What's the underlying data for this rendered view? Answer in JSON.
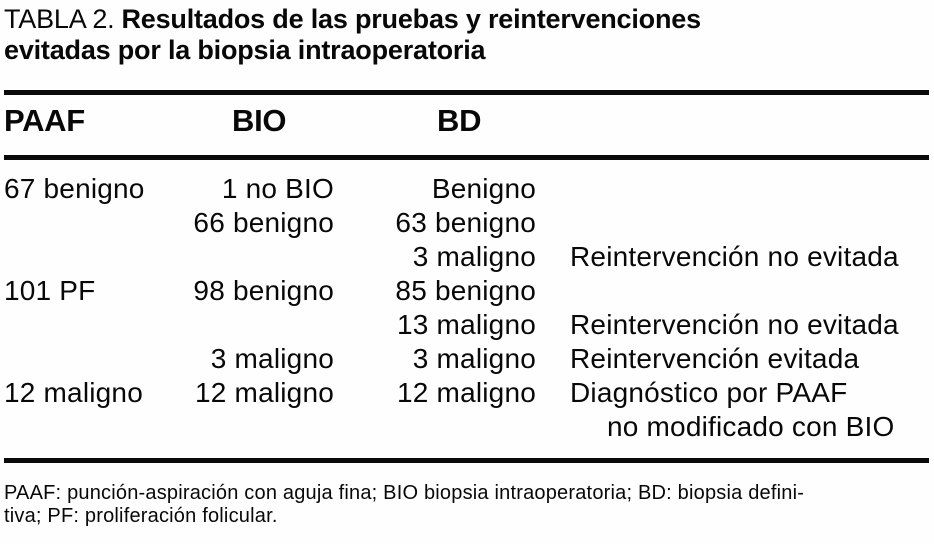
{
  "title": {
    "label": "TABLA 2.",
    "text": "Resultados de las pruebas y reintervenciones evitadas por la biopsia intraoperatoria"
  },
  "table": {
    "headers": {
      "paaf": "PAAF",
      "bio": "BIO",
      "bd": "BD"
    },
    "rows": [
      {
        "paaf": "67 benigno",
        "bio": "1 no BIO",
        "bd": "Benigno",
        "note": ""
      },
      {
        "paaf": "",
        "bio": "66 benigno",
        "bd": "63 benigno",
        "note": ""
      },
      {
        "paaf": "",
        "bio": "",
        "bd": "3 maligno",
        "note": "Reintervención no evitada"
      },
      {
        "paaf": "101 PF",
        "bio": "98 benigno",
        "bd": "85 benigno",
        "note": ""
      },
      {
        "paaf": "",
        "bio": "",
        "bd": "13 maligno",
        "note": "Reintervención no evitada"
      },
      {
        "paaf": "",
        "bio": "3 maligno",
        "bd": "3 maligno",
        "note": "Reintervención evitada"
      },
      {
        "paaf": "12 maligno",
        "bio": "12 maligno",
        "bd": "12 maligno",
        "note": "Diagnóstico por PAAF"
      },
      {
        "paaf": "",
        "bio": "",
        "bd": "",
        "note": "no modificado con BIO"
      }
    ]
  },
  "footnote": {
    "line1": "PAAF: punción-aspiración con aguja fina; BIO biopsia intraoperatoria; BD: biopsia defini-",
    "line2": "tiva; PF: proliferación folicular."
  }
}
